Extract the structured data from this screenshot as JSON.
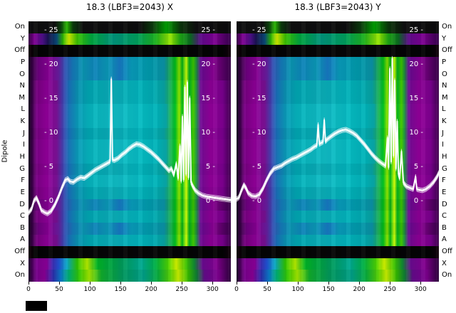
{
  "figure": {
    "background": "#ffffff",
    "offset_box_color": "#000000"
  },
  "left_axis": {
    "dipole_label": "Dipole",
    "row_labels": [
      "On",
      "Y",
      "Off",
      "P",
      "O",
      "N",
      "M",
      "L",
      "K",
      "J",
      "I",
      "H",
      "G",
      "F",
      "E",
      "D",
      "C",
      "B",
      "A",
      "Off",
      "X",
      "On"
    ]
  },
  "right_axis": {
    "row_labels": [
      "On",
      "Y",
      "Off",
      "P",
      "O",
      "N",
      "M",
      "L",
      "K",
      "J",
      "I",
      "H",
      "G",
      "F",
      "E",
      "D",
      "C",
      "B",
      "A",
      "Off",
      "X",
      "On"
    ]
  },
  "inner_axis": {
    "color": "#ffffff"
  },
  "gradients": {
    "off": [
      [
        0,
        "#140008"
      ],
      [
        3,
        "#030303"
      ],
      [
        50,
        "#060606"
      ],
      [
        96,
        "#030303"
      ],
      [
        100,
        "#10000a"
      ]
    ],
    "top_on": [
      [
        0,
        "#0d0d0d"
      ],
      [
        13,
        "#0f0f0f"
      ],
      [
        16,
        "#0a420a"
      ],
      [
        19,
        "#28b400"
      ],
      [
        22,
        "#0a3a0a"
      ],
      [
        27,
        "#0e0e0e"
      ],
      [
        55,
        "#0c0c0c"
      ],
      [
        62,
        "#0a400a"
      ],
      [
        68,
        "#00a000"
      ],
      [
        75,
        "#0a3608"
      ],
      [
        83,
        "#0e0e0e"
      ],
      [
        100,
        "#0a0a0a"
      ]
    ],
    "top_y": [
      [
        0,
        "#3c0048"
      ],
      [
        3,
        "#7c0090"
      ],
      [
        7,
        "#4c1086"
      ],
      [
        10,
        "#12124a"
      ],
      [
        14,
        "#0a4a78"
      ],
      [
        17,
        "#2ab400"
      ],
      [
        20,
        "#cce800"
      ],
      [
        24,
        "#3cc000"
      ],
      [
        31,
        "#00a43c"
      ],
      [
        42,
        "#00927a"
      ],
      [
        54,
        "#009e5a"
      ],
      [
        63,
        "#1cb01c"
      ],
      [
        70,
        "#96e400"
      ],
      [
        75,
        "#1ca612"
      ],
      [
        80,
        "#0a6a20"
      ],
      [
        85,
        "#5c0a88"
      ],
      [
        92,
        "#7c0090"
      ],
      [
        100,
        "#34004a"
      ]
    ],
    "main_a": [
      [
        0,
        "#16001e"
      ],
      [
        2,
        "#3c0048"
      ],
      [
        4,
        "#74007e"
      ],
      [
        9,
        "#8c0094"
      ],
      [
        14,
        "#741090"
      ],
      [
        17,
        "#4040ac"
      ],
      [
        20,
        "#1870b8"
      ],
      [
        24,
        "#0a90b0"
      ],
      [
        30,
        "#00a6b0"
      ],
      [
        42,
        "#0aacb6"
      ],
      [
        54,
        "#02b2ba"
      ],
      [
        62,
        "#00aab0"
      ],
      [
        67,
        "#07a2a2"
      ],
      [
        70,
        "#1cae5c"
      ],
      [
        72.5,
        "#00c020"
      ],
      [
        74.5,
        "#94ea00"
      ],
      [
        76,
        "#00ba18"
      ],
      [
        78,
        "#caf600"
      ],
      [
        79.5,
        "#00b220"
      ],
      [
        81.5,
        "#44ce00"
      ],
      [
        83,
        "#209c42"
      ],
      [
        85,
        "#6c0a90"
      ],
      [
        90,
        "#8c0094"
      ],
      [
        96,
        "#78008c"
      ],
      [
        100,
        "#3c004a"
      ]
    ],
    "main_b": [
      [
        0,
        "#16001e"
      ],
      [
        2,
        "#380044"
      ],
      [
        5,
        "#6c007e"
      ],
      [
        10,
        "#860090"
      ],
      [
        15,
        "#641e9c"
      ],
      [
        18,
        "#3252b2"
      ],
      [
        22,
        "#1478b6"
      ],
      [
        27,
        "#0a94b0"
      ],
      [
        33,
        "#0e84b8"
      ],
      [
        39,
        "#0a98b4"
      ],
      [
        45,
        "#1678c0"
      ],
      [
        51,
        "#089ab8"
      ],
      [
        60,
        "#009aaa"
      ],
      [
        67,
        "#0a90a4"
      ],
      [
        70,
        "#16a452"
      ],
      [
        72.5,
        "#00b818"
      ],
      [
        74.5,
        "#84de00"
      ],
      [
        76,
        "#00ac14"
      ],
      [
        78,
        "#bcee00"
      ],
      [
        79.5,
        "#00aa1c"
      ],
      [
        81.5,
        "#3ac200"
      ],
      [
        83,
        "#1c8e3a"
      ],
      [
        85,
        "#620a8c"
      ],
      [
        91,
        "#860090"
      ],
      [
        100,
        "#360046"
      ]
    ],
    "main_c": [
      [
        0,
        "#16001e"
      ],
      [
        2,
        "#40004c"
      ],
      [
        4,
        "#7a0086"
      ],
      [
        9,
        "#920098"
      ],
      [
        14,
        "#7a1296"
      ],
      [
        17,
        "#4444b0"
      ],
      [
        20,
        "#1a78bc"
      ],
      [
        24,
        "#0a9ab8"
      ],
      [
        30,
        "#06b4bc"
      ],
      [
        44,
        "#10bcc4"
      ],
      [
        56,
        "#06bcc2"
      ],
      [
        64,
        "#00b2b8"
      ],
      [
        68,
        "#08aaa8"
      ],
      [
        70,
        "#20b45e"
      ],
      [
        72.5,
        "#00c824"
      ],
      [
        74.5,
        "#9cf000"
      ],
      [
        76,
        "#02c01a"
      ],
      [
        78,
        "#d2fa00"
      ],
      [
        79.5,
        "#04ba24"
      ],
      [
        81.5,
        "#4ad400"
      ],
      [
        83,
        "#24a246"
      ],
      [
        85,
        "#700c94"
      ],
      [
        90,
        "#920098"
      ],
      [
        96,
        "#7e0090"
      ],
      [
        100,
        "#40004e"
      ]
    ],
    "bottom_x": [
      [
        0,
        "#20002c"
      ],
      [
        4,
        "#7a008e"
      ],
      [
        9,
        "#8a0096"
      ],
      [
        12,
        "#3c2cb2"
      ],
      [
        15,
        "#2052d2"
      ],
      [
        19,
        "#0aa8c4"
      ],
      [
        24,
        "#2cc200"
      ],
      [
        29,
        "#b4ea00"
      ],
      [
        34,
        "#00b224"
      ],
      [
        45,
        "#009a52"
      ],
      [
        56,
        "#00a890"
      ],
      [
        63,
        "#00b042"
      ],
      [
        69,
        "#4cd200"
      ],
      [
        73,
        "#d2f200"
      ],
      [
        78,
        "#3cc200"
      ],
      [
        82,
        "#108a32"
      ],
      [
        86,
        "#680a8e"
      ],
      [
        93,
        "#82008e"
      ],
      [
        100,
        "#2c003a"
      ]
    ],
    "bottom_on": [
      [
        0,
        "#1c0026"
      ],
      [
        4,
        "#76008a"
      ],
      [
        8,
        "#860092"
      ],
      [
        12,
        "#2c2aa8"
      ],
      [
        16,
        "#0a7ac8"
      ],
      [
        20,
        "#00b070"
      ],
      [
        25,
        "#30c400"
      ],
      [
        30,
        "#a0e600"
      ],
      [
        36,
        "#10aa2a"
      ],
      [
        47,
        "#00965e"
      ],
      [
        57,
        "#009e86"
      ],
      [
        64,
        "#08aa3c"
      ],
      [
        70,
        "#54cc00"
      ],
      [
        74,
        "#c8ee00"
      ],
      [
        79,
        "#34b800"
      ],
      [
        83,
        "#0e8030"
      ],
      [
        87,
        "#620a88"
      ],
      [
        94,
        "#7c008c"
      ],
      [
        100,
        "#280036"
      ]
    ]
  },
  "chart_data": [
    {
      "type": "heatmap",
      "panel": "X",
      "title": "18.3 (LBF3=2043) X",
      "x_range": [
        0,
        330
      ],
      "x_ticks": [
        0,
        50,
        100,
        150,
        200,
        250,
        300
      ],
      "rows_top_to_bottom": [
        "On",
        "Y",
        "Off",
        "P",
        "O",
        "N",
        "M",
        "L",
        "K",
        "J",
        "I",
        "H",
        "G",
        "F",
        "E",
        "D",
        "C",
        "B",
        "A",
        "Off",
        "X",
        "On"
      ],
      "row_gradient_keys": [
        "top_on",
        "top_y",
        "off",
        "main_b",
        "main_b",
        "main_a",
        "main_a",
        "main_c",
        "main_c",
        "main_a",
        "main_c",
        "main_c",
        "main_a",
        "main_c",
        "main_a",
        "main_b",
        "main_a",
        "main_b",
        "main_a",
        "off",
        "bottom_x",
        "bottom_on"
      ],
      "inner_value_ticks": [
        25,
        20,
        15,
        10,
        5,
        0
      ],
      "trace_color": "#ffffff",
      "trace": {
        "x": [
          0,
          5,
          9,
          13,
          17,
          21,
          26,
          31,
          37,
          43,
          49,
          55,
          60,
          64,
          68,
          73,
          79,
          85,
          91,
          97,
          103,
          109,
          115,
          121,
          127,
          131,
          133,
          135,
          137,
          140,
          146,
          152,
          158,
          164,
          170,
          176,
          182,
          188,
          194,
          200,
          206,
          212,
          218,
          224,
          229,
          233,
          237,
          241,
          244,
          247,
          249,
          251,
          253,
          255,
          257,
          259,
          261,
          263,
          265,
          268,
          272,
          277,
          283,
          290,
          298,
          306,
          314,
          322,
          330
        ],
        "v": [
          -1.6,
          -1.0,
          0.2,
          0.6,
          -0.2,
          -1.2,
          -1.5,
          -1.7,
          -1.3,
          -0.4,
          0.8,
          2.2,
          3.2,
          3.4,
          3.0,
          2.9,
          3.3,
          3.6,
          3.5,
          3.9,
          4.3,
          4.7,
          5.0,
          5.3,
          5.6,
          5.8,
          6.0,
          18.0,
          6.2,
          6.1,
          6.4,
          6.9,
          7.3,
          7.8,
          8.2,
          8.5,
          8.4,
          8.1,
          7.7,
          7.3,
          6.8,
          6.3,
          5.7,
          5.1,
          4.6,
          4.9,
          4.0,
          5.6,
          3.5,
          8.2,
          3.1,
          12.5,
          3.3,
          16.8,
          4.1,
          17.5,
          3.6,
          15.2,
          2.9,
          2.3,
          1.7,
          1.3,
          1.0,
          0.8,
          0.7,
          0.6,
          0.5,
          0.4,
          0.3
        ]
      }
    },
    {
      "type": "heatmap",
      "panel": "Y",
      "title": "18.3 (LBF3=2043) Y",
      "x_range": [
        0,
        330
      ],
      "x_ticks": [
        0,
        50,
        100,
        150,
        200,
        250,
        300
      ],
      "rows_top_to_bottom": [
        "On",
        "Y",
        "Off",
        "P",
        "O",
        "N",
        "M",
        "L",
        "K",
        "J",
        "I",
        "H",
        "G",
        "F",
        "E",
        "D",
        "C",
        "B",
        "A",
        "Off",
        "X",
        "On"
      ],
      "row_gradient_keys": [
        "top_on",
        "top_y",
        "off",
        "main_b",
        "main_b",
        "main_a",
        "main_a",
        "main_c",
        "main_c",
        "main_a",
        "main_c",
        "main_c",
        "main_a",
        "main_c",
        "main_a",
        "main_b",
        "main_a",
        "main_b",
        "main_a",
        "off",
        "bottom_x",
        "bottom_on"
      ],
      "inner_value_ticks": [
        25,
        20,
        15,
        10,
        5,
        0
      ],
      "trace_color": "#ffffff",
      "trace": {
        "x": [
          0,
          4,
          8,
          12,
          15,
          19,
          25,
          31,
          37,
          43,
          49,
          55,
          61,
          67,
          73,
          79,
          85,
          91,
          97,
          103,
          109,
          115,
          121,
          127,
          131,
          133,
          135,
          137,
          141,
          143,
          145,
          148,
          154,
          160,
          166,
          172,
          178,
          184,
          190,
          196,
          202,
          208,
          214,
          220,
          226,
          232,
          238,
          243,
          246,
          248,
          250,
          252,
          254,
          256,
          258,
          260,
          262,
          264,
          266,
          269,
          272,
          274,
          277,
          282,
          288,
          292,
          294,
          297,
          303,
          309,
          315,
          321,
          327,
          330
        ],
        "v": [
          0.4,
          0.7,
          1.7,
          2.5,
          2.1,
          1.3,
          0.9,
          0.8,
          1.1,
          2.0,
          3.2,
          4.2,
          4.9,
          5.1,
          5.3,
          5.7,
          6.0,
          6.3,
          6.5,
          6.8,
          7.1,
          7.4,
          7.7,
          8.1,
          8.3,
          11.3,
          8.5,
          8.6,
          8.8,
          12.0,
          8.9,
          9.2,
          9.6,
          10.0,
          10.3,
          10.5,
          10.6,
          10.4,
          10.1,
          9.7,
          9.1,
          8.5,
          7.8,
          7.1,
          6.5,
          6.0,
          5.6,
          5.3,
          9.4,
          5.1,
          19.5,
          5.9,
          21.0,
          6.8,
          17.8,
          4.9,
          11.8,
          4.1,
          3.5,
          7.4,
          2.9,
          2.6,
          2.3,
          2.1,
          1.9,
          3.7,
          1.9,
          1.8,
          1.7,
          1.9,
          2.3,
          2.9,
          3.7,
          4.3
        ]
      }
    }
  ]
}
